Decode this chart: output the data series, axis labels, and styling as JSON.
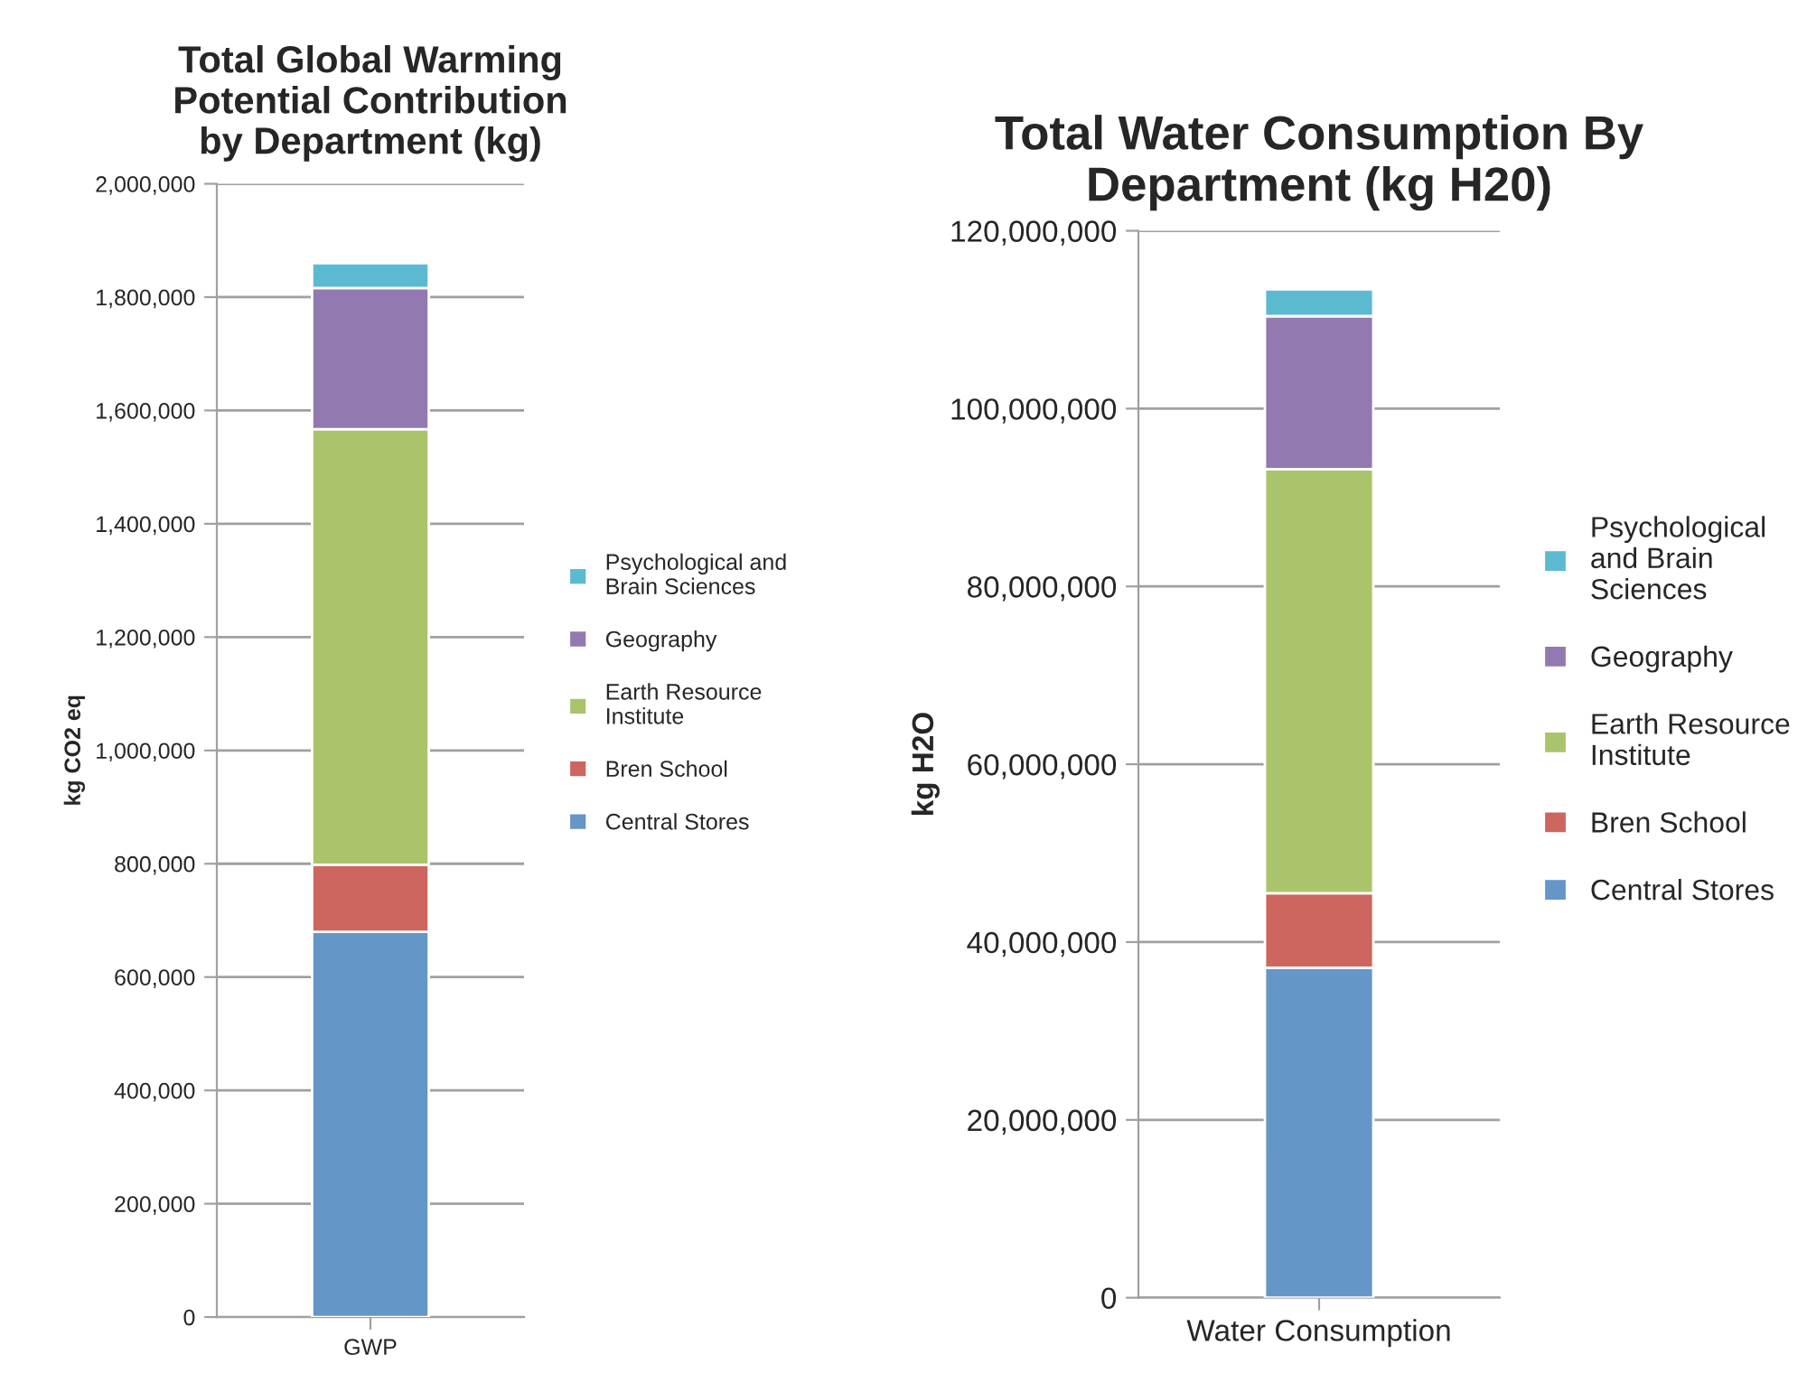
{
  "chart_data": [
    {
      "type": "bar",
      "stacked": true,
      "title": "Total Global Warming Potential Contribution by Department (kg)",
      "ylabel": "kg CO2 eq",
      "categories": [
        "GWP"
      ],
      "series": [
        {
          "name": "Central Stores",
          "color": "#6496c8",
          "values": [
            680000
          ]
        },
        {
          "name": "Bren School",
          "color": "#cd665e",
          "values": [
            118000
          ]
        },
        {
          "name": "Earth Resource Institute",
          "color": "#aac46c",
          "values": [
            769000
          ]
        },
        {
          "name": "Geography",
          "color": "#927ab0",
          "values": [
            249000
          ]
        },
        {
          "name": "Psychological and Brain Sciences",
          "color": "#5bbad0",
          "values": [
            44000
          ]
        }
      ],
      "ylim": [
        0,
        2000000
      ],
      "yticks": [
        {
          "value": 0,
          "label": "0"
        },
        {
          "value": 200000,
          "label": "200,000"
        },
        {
          "value": 400000,
          "label": "400,000"
        },
        {
          "value": 600000,
          "label": "600,000"
        },
        {
          "value": 800000,
          "label": "800,000"
        },
        {
          "value": 1000000,
          "label": "1,000,000"
        },
        {
          "value": 1200000,
          "label": "1,200,000"
        },
        {
          "value": 1400000,
          "label": "1,400,000"
        },
        {
          "value": 1600000,
          "label": "1,600,000"
        },
        {
          "value": 1800000,
          "label": "1,800,000"
        },
        {
          "value": 2000000,
          "label": "2,000,000"
        }
      ],
      "grid": "y",
      "legend": "right"
    },
    {
      "type": "bar",
      "stacked": true,
      "title": "Total Water Consumption By Department (kg H20)",
      "ylabel": "kg H2O",
      "categories": [
        "Water Consumption"
      ],
      "series": [
        {
          "name": "Central Stores",
          "color": "#6496c8",
          "values": [
            37100000
          ]
        },
        {
          "name": "Bren School",
          "color": "#cd665e",
          "values": [
            8400000
          ]
        },
        {
          "name": "Earth Resource Institute",
          "color": "#aac46c",
          "values": [
            47700000
          ]
        },
        {
          "name": "Geography",
          "color": "#927ab0",
          "values": [
            17200000
          ]
        },
        {
          "name": "Psychological and Brain Sciences",
          "color": "#5bbad0",
          "values": [
            3000000
          ]
        }
      ],
      "ylim": [
        0,
        120000000
      ],
      "yticks": [
        {
          "value": 0,
          "label": "0"
        },
        {
          "value": 20000000,
          "label": "20,000,000"
        },
        {
          "value": 40000000,
          "label": "40,000,000"
        },
        {
          "value": 60000000,
          "label": "60,000,000"
        },
        {
          "value": 80000000,
          "label": "80,000,000"
        },
        {
          "value": 100000000,
          "label": "100,000,000"
        },
        {
          "value": 120000000,
          "label": "120,000,000"
        }
      ],
      "grid": "y",
      "legend": "right"
    }
  ]
}
